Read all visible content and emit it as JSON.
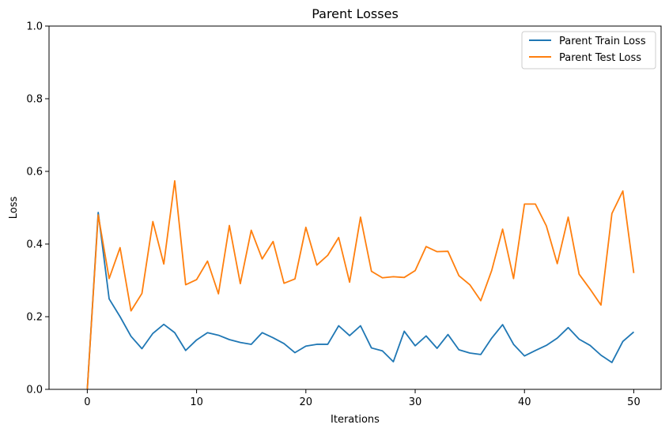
{
  "chart_data": {
    "type": "line",
    "title": "Parent Losses",
    "xlabel": "Iterations",
    "ylabel": "Loss",
    "xlim": [
      -3.5,
      52.5
    ],
    "ylim": [
      0,
      1
    ],
    "xticks": [
      0,
      10,
      20,
      30,
      40,
      50
    ],
    "yticks": [
      0.0,
      0.2,
      0.4,
      0.6,
      0.8,
      1.0
    ],
    "xtick_labels": [
      "0",
      "10",
      "20",
      "30",
      "40",
      "50"
    ],
    "ytick_labels": [
      "0.0",
      "0.2",
      "0.4",
      "0.6",
      "0.8",
      "1.0"
    ],
    "grid": false,
    "legend_position": "top-right",
    "x": [
      0,
      1,
      2,
      3,
      4,
      5,
      6,
      7,
      8,
      9,
      10,
      11,
      12,
      13,
      14,
      15,
      16,
      17,
      18,
      19,
      20,
      21,
      22,
      23,
      24,
      25,
      26,
      27,
      28,
      29,
      30,
      31,
      32,
      33,
      34,
      35,
      36,
      37,
      38,
      39,
      40,
      41,
      42,
      43,
      44,
      45,
      46,
      47,
      48,
      49,
      50
    ],
    "series": [
      {
        "name": "Parent Train Loss",
        "color": "#1f77b4",
        "values": [
          0.0,
          0.487,
          0.249,
          0.2,
          0.146,
          0.112,
          0.154,
          0.179,
          0.156,
          0.107,
          0.136,
          0.156,
          0.149,
          0.137,
          0.129,
          0.124,
          0.156,
          0.142,
          0.126,
          0.101,
          0.119,
          0.124,
          0.124,
          0.175,
          0.148,
          0.175,
          0.114,
          0.106,
          0.076,
          0.16,
          0.12,
          0.147,
          0.113,
          0.151,
          0.109,
          0.1,
          0.096,
          0.141,
          0.178,
          0.124,
          0.092,
          0.107,
          0.121,
          0.141,
          0.17,
          0.138,
          0.121,
          0.094,
          0.074,
          0.132,
          0.158
        ]
      },
      {
        "name": "Parent Test Loss",
        "color": "#ff7f0e",
        "values": [
          0.0,
          0.48,
          0.305,
          0.39,
          0.216,
          0.264,
          0.462,
          0.345,
          0.574,
          0.288,
          0.302,
          0.353,
          0.263,
          0.451,
          0.291,
          0.438,
          0.359,
          0.407,
          0.292,
          0.304,
          0.446,
          0.342,
          0.369,
          0.418,
          0.295,
          0.474,
          0.325,
          0.307,
          0.31,
          0.308,
          0.327,
          0.393,
          0.379,
          0.38,
          0.313,
          0.288,
          0.244,
          0.327,
          0.441,
          0.305,
          0.51,
          0.51,
          0.45,
          0.346,
          0.474,
          0.317,
          0.276,
          0.232,
          0.484,
          0.546,
          0.32
        ]
      }
    ]
  }
}
